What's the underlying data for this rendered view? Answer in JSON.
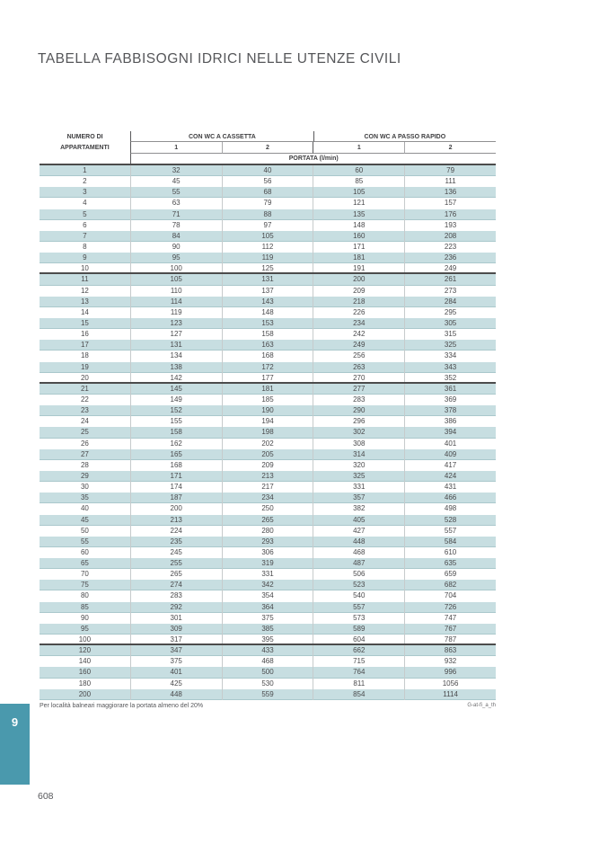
{
  "page": {
    "title": "TABELLA FABBISOGNI IDRICI NELLE UTENZE CIVILI",
    "chapter_tab": "9",
    "page_number": "608"
  },
  "table": {
    "left_header_line1": "NUMERO DI",
    "left_header_line2": "APPARTAMENTI",
    "groups": [
      {
        "label": "CON WC A CASSETTA",
        "subcols": [
          "1",
          "2"
        ]
      },
      {
        "label": "CON WC  A PASSO RAPIDO",
        "subcols": [
          "1",
          "2"
        ]
      }
    ],
    "units_label": "PORTATA (l/min)",
    "heavy_border_after": [
      "10",
      "20",
      "100"
    ],
    "rows": [
      [
        "1",
        "32",
        "40",
        "60",
        "79"
      ],
      [
        "2",
        "45",
        "56",
        "85",
        "111"
      ],
      [
        "3",
        "55",
        "68",
        "105",
        "136"
      ],
      [
        "4",
        "63",
        "79",
        "121",
        "157"
      ],
      [
        "5",
        "71",
        "88",
        "135",
        "176"
      ],
      [
        "6",
        "78",
        "97",
        "148",
        "193"
      ],
      [
        "7",
        "84",
        "105",
        "160",
        "208"
      ],
      [
        "8",
        "90",
        "112",
        "171",
        "223"
      ],
      [
        "9",
        "95",
        "119",
        "181",
        "236"
      ],
      [
        "10",
        "100",
        "125",
        "191",
        "249"
      ],
      [
        "11",
        "105",
        "131",
        "200",
        "261"
      ],
      [
        "12",
        "110",
        "137",
        "209",
        "273"
      ],
      [
        "13",
        "114",
        "143",
        "218",
        "284"
      ],
      [
        "14",
        "119",
        "148",
        "226",
        "295"
      ],
      [
        "15",
        "123",
        "153",
        "234",
        "305"
      ],
      [
        "16",
        "127",
        "158",
        "242",
        "315"
      ],
      [
        "17",
        "131",
        "163",
        "249",
        "325"
      ],
      [
        "18",
        "134",
        "168",
        "256",
        "334"
      ],
      [
        "19",
        "138",
        "172",
        "263",
        "343"
      ],
      [
        "20",
        "142",
        "177",
        "270",
        "352"
      ],
      [
        "21",
        "145",
        "181",
        "277",
        "361"
      ],
      [
        "22",
        "149",
        "185",
        "283",
        "369"
      ],
      [
        "23",
        "152",
        "190",
        "290",
        "378"
      ],
      [
        "24",
        "155",
        "194",
        "296",
        "386"
      ],
      [
        "25",
        "158",
        "198",
        "302",
        "394"
      ],
      [
        "26",
        "162",
        "202",
        "308",
        "401"
      ],
      [
        "27",
        "165",
        "205",
        "314",
        "409"
      ],
      [
        "28",
        "168",
        "209",
        "320",
        "417"
      ],
      [
        "29",
        "171",
        "213",
        "325",
        "424"
      ],
      [
        "30",
        "174",
        "217",
        "331",
        "431"
      ],
      [
        "35",
        "187",
        "234",
        "357",
        "466"
      ],
      [
        "40",
        "200",
        "250",
        "382",
        "498"
      ],
      [
        "45",
        "213",
        "265",
        "405",
        "528"
      ],
      [
        "50",
        "224",
        "280",
        "427",
        "557"
      ],
      [
        "55",
        "235",
        "293",
        "448",
        "584"
      ],
      [
        "60",
        "245",
        "306",
        "468",
        "610"
      ],
      [
        "65",
        "255",
        "319",
        "487",
        "635"
      ],
      [
        "70",
        "265",
        "331",
        "506",
        "659"
      ],
      [
        "75",
        "274",
        "342",
        "523",
        "682"
      ],
      [
        "80",
        "283",
        "354",
        "540",
        "704"
      ],
      [
        "85",
        "292",
        "364",
        "557",
        "726"
      ],
      [
        "90",
        "301",
        "375",
        "573",
        "747"
      ],
      [
        "95",
        "309",
        "385",
        "589",
        "767"
      ],
      [
        "100",
        "317",
        "395",
        "604",
        "787"
      ],
      [
        "120",
        "347",
        "433",
        "662",
        "863"
      ],
      [
        "140",
        "375",
        "468",
        "715",
        "932"
      ],
      [
        "160",
        "401",
        "500",
        "764",
        "996"
      ],
      [
        "180",
        "425",
        "530",
        "811",
        "1056"
      ],
      [
        "200",
        "448",
        "559",
        "854",
        "1114"
      ]
    ],
    "footnote": "Per località balneari maggiorare la portata almeno del 20%",
    "code": "G-at-fi_a_th"
  },
  "colors": {
    "stripe": "#c7dee1",
    "heavy_line": "#4c4c4c",
    "chapter_tab": "#4a99ad"
  }
}
